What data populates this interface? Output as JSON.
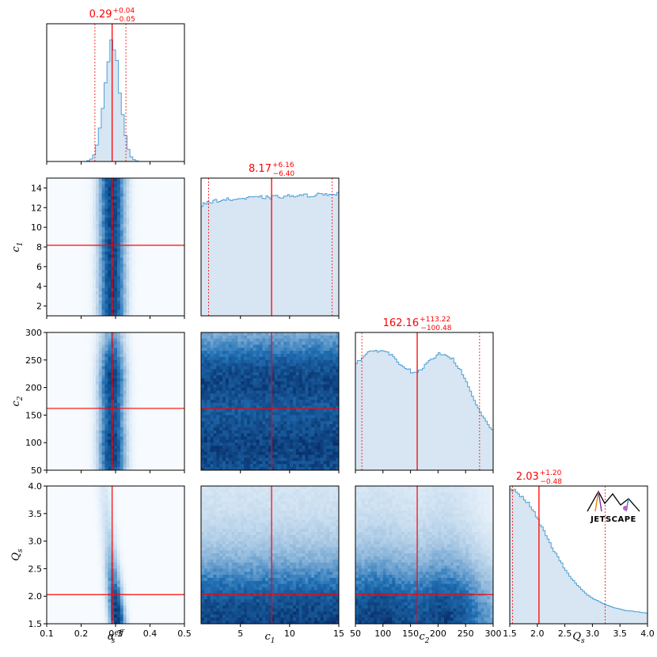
{
  "chart_data": {
    "type": "corner",
    "colors": {
      "hist_fill": "#d7e6f2",
      "hist_line": "#4f9fd6",
      "marker": "#ff0000",
      "density_dark": "#08306b",
      "density_light": "#f7fbff"
    },
    "params": [
      {
        "key": "alpha",
        "label_base": "α",
        "label_sub": "s",
        "label_sup": "eff",
        "range": [
          0.1,
          0.5
        ],
        "ticks": [
          0.1,
          0.2,
          0.3,
          0.4,
          0.5
        ],
        "tick_labels": [
          "0.1",
          "0.2",
          "0.3",
          "0.4",
          "0.5"
        ],
        "median": 0.29,
        "median_text": "0.29",
        "plus_text": "+0.04",
        "minus_text": "−0.05",
        "ci": [
          0.24,
          0.33
        ]
      },
      {
        "key": "c1",
        "label_base": "c",
        "label_sub": "1",
        "label_sup": "",
        "range": [
          1,
          15
        ],
        "ticks": [
          2,
          4,
          6,
          8,
          10,
          12,
          14
        ],
        "tick_labels": [
          "2",
          "4",
          "6",
          "8",
          "10",
          "12",
          "14"
        ],
        "xticks": [
          5,
          10,
          15
        ],
        "xtick_labels": [
          "5",
          "10",
          "15"
        ],
        "median": 8.17,
        "median_text": "8.17",
        "plus_text": "+6.16",
        "minus_text": "−6.40",
        "ci": [
          1.77,
          14.33
        ]
      },
      {
        "key": "c2",
        "label_base": "c",
        "label_sub": "2",
        "label_sup": "",
        "range": [
          50,
          300
        ],
        "ticks": [
          50,
          100,
          150,
          200,
          250,
          300
        ],
        "tick_labels": [
          "50",
          "100",
          "150",
          "200",
          "250",
          "300"
        ],
        "median": 162.16,
        "median_text": "162.16",
        "plus_text": "+113.22",
        "minus_text": "−100.48",
        "ci": [
          61.68,
          275.38
        ]
      },
      {
        "key": "Qs",
        "label_base": "Q",
        "label_sub": "s",
        "label_sup": "",
        "range": [
          1.5,
          4.0
        ],
        "ticks": [
          1.5,
          2.0,
          2.5,
          3.0,
          3.5,
          4.0
        ],
        "tick_labels": [
          "1.5",
          "2.0",
          "2.5",
          "3.0",
          "3.5",
          "4.0"
        ],
        "median": 2.03,
        "median_text": "2.03",
        "plus_text": "+1.20",
        "minus_text": "−0.48",
        "ci": [
          1.55,
          3.23
        ]
      }
    ],
    "hist_alpha": {
      "x": [
        0.21,
        0.22,
        0.23,
        0.24,
        0.25,
        0.26,
        0.27,
        0.28,
        0.29,
        0.3,
        0.31,
        0.32,
        0.33,
        0.34,
        0.35,
        0.36
      ],
      "y": [
        0.01,
        0.04,
        0.1,
        0.22,
        0.42,
        0.65,
        0.86,
        0.97,
        1.0,
        0.92,
        0.76,
        0.55,
        0.33,
        0.15,
        0.05,
        0.01
      ],
      "ymax": 1.15
    },
    "hist_c1": {
      "x": [
        1.0,
        2.0,
        3.0,
        4.0,
        5.0,
        6.0,
        7.0,
        8.0,
        9.0,
        10.0,
        11.0,
        12.0,
        13.0,
        14.0,
        15.0
      ],
      "y": [
        0.8,
        0.83,
        0.84,
        0.845,
        0.85,
        0.855,
        0.86,
        0.86,
        0.865,
        0.87,
        0.87,
        0.875,
        0.88,
        0.885,
        0.89
      ],
      "ymax": 1.0
    },
    "hist_c2": {
      "x": [
        50,
        60,
        70,
        80,
        90,
        100,
        110,
        120,
        130,
        140,
        150,
        160,
        170,
        180,
        190,
        200,
        210,
        220,
        230,
        240,
        250,
        260,
        270,
        280,
        290,
        300
      ],
      "y": [
        0.77,
        0.81,
        0.84,
        0.86,
        0.87,
        0.87,
        0.85,
        0.82,
        0.78,
        0.75,
        0.72,
        0.7,
        0.73,
        0.77,
        0.81,
        0.84,
        0.85,
        0.83,
        0.79,
        0.73,
        0.65,
        0.56,
        0.47,
        0.4,
        0.34,
        0.28
      ],
      "ymax": 1.0
    },
    "hist_Qs": {
      "x": [
        1.5,
        1.6,
        1.7,
        1.8,
        1.9,
        2.0,
        2.1,
        2.2,
        2.3,
        2.4,
        2.5,
        2.6,
        2.7,
        2.8,
        2.9,
        3.0,
        3.1,
        3.2,
        3.3,
        3.4,
        3.5,
        3.6,
        3.7,
        3.8,
        3.9,
        4.0
      ],
      "y": [
        1.0,
        0.99,
        0.96,
        0.92,
        0.86,
        0.79,
        0.71,
        0.63,
        0.55,
        0.48,
        0.41,
        0.35,
        0.3,
        0.26,
        0.22,
        0.19,
        0.17,
        0.15,
        0.135,
        0.12,
        0.11,
        0.1,
        0.095,
        0.09,
        0.085,
        0.08
      ],
      "ymax": 1.03
    }
  },
  "logo": {
    "text": "JETSCAPE"
  }
}
